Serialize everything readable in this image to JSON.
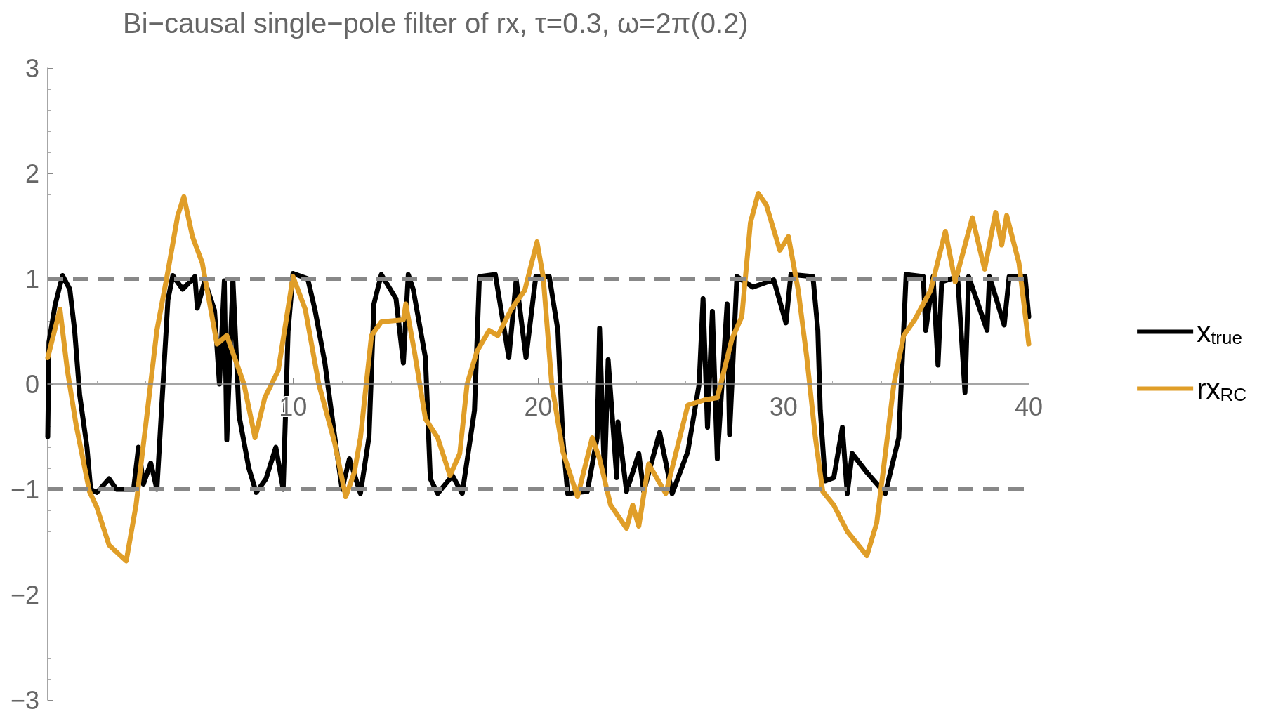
{
  "chart_data": {
    "type": "line",
    "title": "Bi−causal single−pole filter of rx, τ=0.3, ω=2π(0.2)",
    "xlim": [
      0,
      40
    ],
    "xticks": [
      10,
      20,
      30,
      40
    ],
    "ylim": [
      -3,
      3
    ],
    "yticks": [
      -3,
      -2,
      -1,
      0,
      1,
      2,
      3
    ],
    "grid": false,
    "legend": "right",
    "marker": "none",
    "line_style": "solid",
    "ref_lines": [
      {
        "axis": "y",
        "value": 1,
        "color": "#888888",
        "line_style": "dashed"
      },
      {
        "axis": "y",
        "value": -1,
        "color": "#888888",
        "line_style": "dashed"
      }
    ],
    "series": [
      {
        "name": "x$_{true}$",
        "color": "#000000",
        "x": [
          0,
          0.05,
          0.3,
          0.6,
          0.9,
          1.1,
          1.3,
          1.6,
          1.75,
          2.0,
          2.5,
          2.8,
          3.5,
          3.7,
          3.9,
          4.2,
          4.45,
          4.7,
          4.9,
          5.1,
          5.5,
          6.0,
          6.1,
          6.4,
          6.8,
          7.0,
          7.2,
          7.3,
          7.55,
          7.8,
          8.2,
          8.5,
          8.9,
          9.3,
          9.6,
          9.8,
          10.0,
          10.6,
          10.9,
          11.3,
          11.7,
          12.0,
          12.3,
          12.75,
          13.1,
          13.3,
          13.6,
          14.2,
          14.5,
          14.7,
          14.9,
          15.4,
          15.6,
          15.9,
          16.5,
          16.9,
          17.4,
          17.6,
          18.25,
          18.8,
          19.1,
          19.5,
          19.9,
          20.45,
          20.8,
          21.0,
          21.2,
          22.0,
          22.4,
          22.5,
          22.7,
          22.85,
          23.2,
          23.25,
          23.6,
          24.1,
          24.3,
          24.95,
          25.46,
          26.1,
          26.56,
          26.72,
          26.9,
          27.1,
          27.3,
          27.7,
          27.8,
          28.1,
          28.75,
          29.6,
          30.1,
          30.3,
          31.2,
          31.4,
          31.5,
          31.7,
          32.05,
          32.4,
          32.6,
          32.8,
          33.4,
          34.15,
          34.7,
          34.9,
          35.0,
          35.7,
          35.8,
          36.1,
          36.3,
          36.45,
          37.1,
          37.4,
          37.55,
          38.3,
          38.4,
          39.0,
          39.2,
          39.85,
          40.0
        ],
        "values": [
          -0.5,
          0.4,
          0.75,
          1.03,
          0.9,
          0.5,
          -0.1,
          -0.6,
          -1.0,
          -1.03,
          -0.9,
          -1.0,
          -1.0,
          -0.6,
          -0.95,
          -0.75,
          -1.0,
          0,
          0.8,
          1.03,
          0.9,
          1.02,
          0.72,
          0.98,
          0.7,
          0,
          0.98,
          -0.53,
          0.99,
          -0.3,
          -0.8,
          -1.03,
          -0.9,
          -0.6,
          -1.0,
          0.5,
          1.05,
          1.0,
          0.7,
          0.2,
          -0.5,
          -1.0,
          -0.71,
          -1.04,
          -0.5,
          0.76,
          1.04,
          0.81,
          0.2,
          1.04,
          0.9,
          0.25,
          -0.9,
          -1.04,
          -0.87,
          -1.04,
          -0.25,
          1.02,
          1.04,
          0.25,
          0.99,
          0.25,
          1.02,
          1.02,
          0.51,
          -0.51,
          -1.04,
          -1.02,
          -0.51,
          0.53,
          -0.89,
          0.23,
          -0.89,
          -0.36,
          -1.02,
          -0.66,
          -1.02,
          -0.46,
          -1.04,
          -0.64,
          0,
          0.81,
          -0.41,
          0.69,
          -0.71,
          0.76,
          -0.48,
          1.02,
          0.92,
          0.99,
          0.58,
          1.04,
          1.02,
          0.51,
          -0.25,
          -0.92,
          -0.89,
          -0.41,
          -1.04,
          -0.66,
          -0.84,
          -1.04,
          -0.51,
          0.51,
          1.04,
          1.02,
          0.51,
          1.02,
          0.18,
          0.97,
          1.02,
          -0.08,
          1.02,
          0.51,
          1.02,
          0.56,
          1.02,
          1.02,
          0.64
        ]
      },
      {
        "name": "rx$_{RC}$",
        "color": "#e09e28",
        "x": [
          0,
          0.5,
          0.8,
          1.15,
          1.7,
          2.0,
          2.5,
          3.2,
          3.6,
          4.0,
          4.45,
          4.9,
          5.3,
          5.55,
          5.9,
          6.3,
          6.9,
          7.3,
          8.0,
          8.45,
          8.85,
          9.4,
          10.0,
          10.5,
          11.05,
          11.7,
          12.15,
          12.5,
          12.75,
          13.2,
          13.6,
          14.5,
          14.6,
          14.95,
          15.4,
          15.9,
          16.4,
          16.8,
          17.1,
          17.5,
          18.0,
          18.35,
          18.9,
          19.45,
          19.95,
          20.2,
          20.55,
          21.0,
          21.6,
          22.2,
          22.5,
          22.95,
          23.6,
          23.85,
          24.1,
          24.5,
          25.2,
          25.5,
          26.1,
          26.8,
          27.3,
          27.9,
          28.3,
          28.65,
          28.97,
          29.3,
          29.85,
          30.2,
          30.6,
          30.95,
          31.3,
          31.6,
          32.05,
          32.6,
          33.4,
          33.8,
          34.1,
          34.5,
          34.9,
          35.35,
          36.0,
          36.6,
          37.0,
          37.7,
          38.2,
          38.65,
          38.9,
          39.1,
          39.6,
          40.0
        ],
        "values": [
          0.25,
          0.71,
          0.13,
          -0.38,
          -1.02,
          -1.17,
          -1.53,
          -1.68,
          -1.15,
          -0.38,
          0.51,
          1.07,
          1.6,
          1.78,
          1.4,
          1.15,
          0.38,
          0.46,
          0,
          -0.51,
          -0.13,
          0.13,
          1.02,
          0.71,
          0,
          -0.56,
          -1.07,
          -0.84,
          -0.51,
          0.46,
          0.59,
          0.61,
          0.76,
          0.31,
          -0.33,
          -0.51,
          -0.87,
          -0.66,
          0,
          0.31,
          0.51,
          0.46,
          0.71,
          0.89,
          1.35,
          1.02,
          0,
          -0.64,
          -1.07,
          -0.51,
          -0.71,
          -1.15,
          -1.37,
          -1.15,
          -1.35,
          -0.76,
          -1.04,
          -0.76,
          -0.2,
          -0.15,
          -0.13,
          0.43,
          0.64,
          1.53,
          1.81,
          1.7,
          1.27,
          1.4,
          0.89,
          0.25,
          -0.51,
          -1.02,
          -1.15,
          -1.4,
          -1.63,
          -1.32,
          -0.76,
          0,
          0.46,
          0.61,
          0.89,
          1.45,
          0.97,
          1.58,
          1.09,
          1.63,
          1.32,
          1.6,
          1.15,
          0.38
        ]
      }
    ]
  }
}
